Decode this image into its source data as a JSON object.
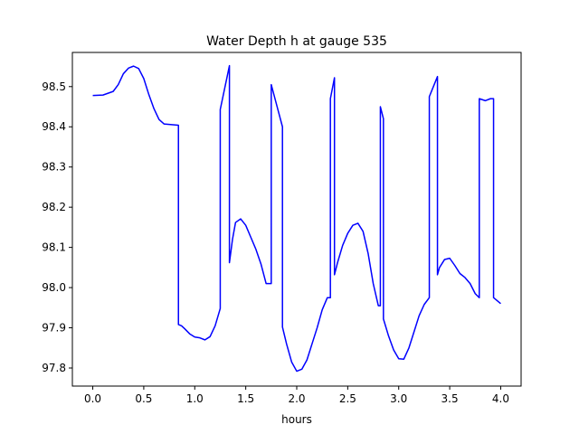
{
  "chart_data": {
    "type": "line",
    "title": "Water Depth h at gauge 535",
    "xlabel": "hours",
    "ylabel": "",
    "xlim": [
      -0.2,
      4.2
    ],
    "ylim": [
      97.755,
      98.585
    ],
    "xticks": [
      0.0,
      0.5,
      1.0,
      1.5,
      2.0,
      2.5,
      3.0,
      3.5,
      4.0
    ],
    "xtick_labels": [
      "0.0",
      "0.5",
      "1.0",
      "1.5",
      "2.0",
      "2.5",
      "3.0",
      "3.5",
      "4.0"
    ],
    "yticks": [
      97.8,
      97.9,
      98.0,
      98.1,
      98.2,
      98.3,
      98.4,
      98.5
    ],
    "ytick_labels": [
      "97.8",
      "97.9",
      "98.0",
      "98.1",
      "98.2",
      "98.3",
      "98.4",
      "98.5"
    ],
    "grid": false,
    "color": "#0000ff",
    "series": [
      {
        "x": [
          0.0,
          0.1,
          0.2,
          0.25,
          0.3,
          0.35,
          0.4,
          0.45,
          0.5,
          0.55,
          0.6,
          0.65,
          0.7,
          0.75,
          0.84,
          0.84,
          0.87,
          0.9,
          0.95,
          1.0,
          1.05,
          1.1,
          1.15,
          1.2,
          1.25,
          1.25,
          1.34,
          1.34,
          1.37,
          1.4,
          1.45,
          1.5,
          1.55,
          1.6,
          1.65,
          1.7,
          1.75,
          1.75,
          1.86,
          1.86,
          1.9,
          1.95,
          2.0,
          2.05,
          2.1,
          2.15,
          2.2,
          2.25,
          2.3,
          2.33,
          2.33,
          2.37,
          2.37,
          2.4,
          2.45,
          2.5,
          2.55,
          2.6,
          2.65,
          2.7,
          2.75,
          2.8,
          2.82,
          2.82,
          2.85,
          2.85,
          2.9,
          2.95,
          3.0,
          3.05,
          3.1,
          3.15,
          3.2,
          3.25,
          3.3,
          3.3,
          3.38,
          3.38,
          3.4,
          3.45,
          3.5,
          3.55,
          3.6,
          3.65,
          3.7,
          3.75,
          3.79,
          3.79,
          3.85,
          3.9,
          3.93,
          3.93,
          4.0
        ],
        "y": [
          98.478,
          98.479,
          98.488,
          98.505,
          98.532,
          98.546,
          98.551,
          98.545,
          98.52,
          98.48,
          98.445,
          98.418,
          98.407,
          98.406,
          98.404,
          97.908,
          97.905,
          97.898,
          97.885,
          97.877,
          97.875,
          97.87,
          97.878,
          97.905,
          97.948,
          98.443,
          98.552,
          98.062,
          98.12,
          98.162,
          98.171,
          98.155,
          98.125,
          98.095,
          98.058,
          98.01,
          98.01,
          98.505,
          98.4,
          97.902,
          97.86,
          97.815,
          97.792,
          97.797,
          97.82,
          97.86,
          97.9,
          97.945,
          97.975,
          97.975,
          98.47,
          98.522,
          98.032,
          98.062,
          98.105,
          98.135,
          98.155,
          98.16,
          98.14,
          98.085,
          98.01,
          97.955,
          97.955,
          98.45,
          98.42,
          97.922,
          97.88,
          97.845,
          97.823,
          97.822,
          97.85,
          97.89,
          97.93,
          97.958,
          97.975,
          98.475,
          98.525,
          98.032,
          98.05,
          98.07,
          98.073,
          98.055,
          98.035,
          98.025,
          98.01,
          97.985,
          97.975,
          98.47,
          98.465,
          98.47,
          98.47,
          97.975,
          97.96
        ]
      }
    ]
  }
}
